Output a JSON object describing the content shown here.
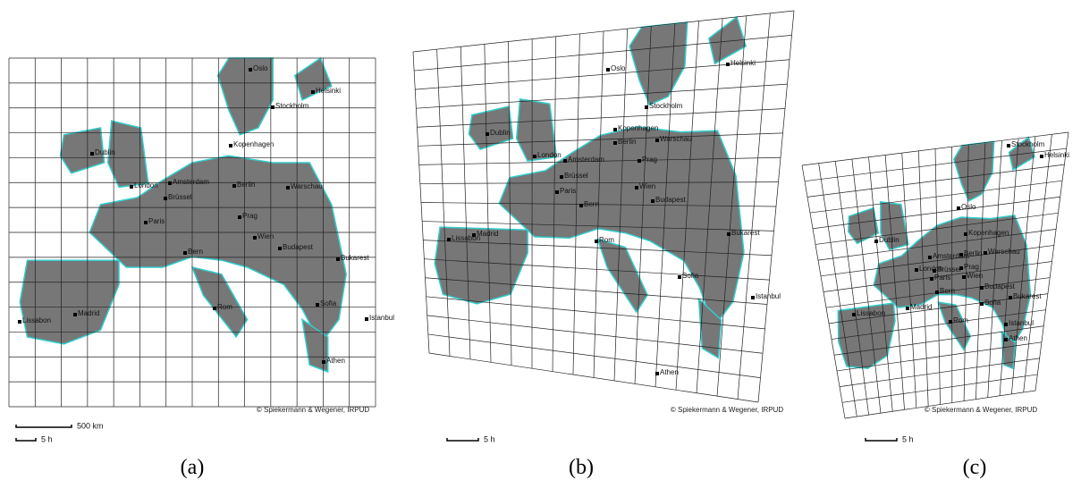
{
  "panels": [
    {
      "label": "(a)",
      "credit": "© Spiekermann & Wegener, IRPUD",
      "scale_labels": [
        "500 km",
        "5 h"
      ],
      "cities": [
        "Oslo",
        "Helsinki",
        "Stockholm",
        "Dublin",
        "Kopenhagen",
        "London",
        "Amsterdam",
        "Brüssel",
        "Berlin",
        "Warschau",
        "Paris",
        "Prag",
        "Wien",
        "Budapest",
        "Bern",
        "Bukarest",
        "Rom",
        "Sofia",
        "Madrid",
        "Lissabon",
        "Istanbul",
        "Athen"
      ]
    },
    {
      "label": "(b)",
      "credit": "© Spiekermann & Wegener, IRPUD",
      "scale_labels": [
        "5 h"
      ],
      "cities": [
        "Oslo",
        "Helsinki",
        "Stockholm",
        "Kopenhagen",
        "Dublin",
        "Berlin",
        "Warschau",
        "London",
        "Amsterdam",
        "Prag",
        "Brüssel",
        "Paris",
        "Wien",
        "Bern",
        "Budapest",
        "Lissabon",
        "Madrid",
        "Rom",
        "Bukarest",
        "Sofia",
        "Istanbul",
        "Athen"
      ]
    },
    {
      "label": "(c)",
      "credit": "© Spiekermann & Wegener, IRPUD",
      "scale_labels": [
        "5 h"
      ],
      "cities": [
        "Stockholm",
        "Helsinki",
        "Oslo",
        "Kopenhagen",
        "Dublin",
        "Warschau",
        "Amsterdam",
        "Berlin",
        "London",
        "Brüssel",
        "Prag",
        "Paris",
        "Wien",
        "Budapest",
        "Bern",
        "Bukarest",
        "Sofia",
        "Lissabon",
        "Madrid",
        "Rom",
        "Istanbul",
        "Athen"
      ]
    }
  ]
}
